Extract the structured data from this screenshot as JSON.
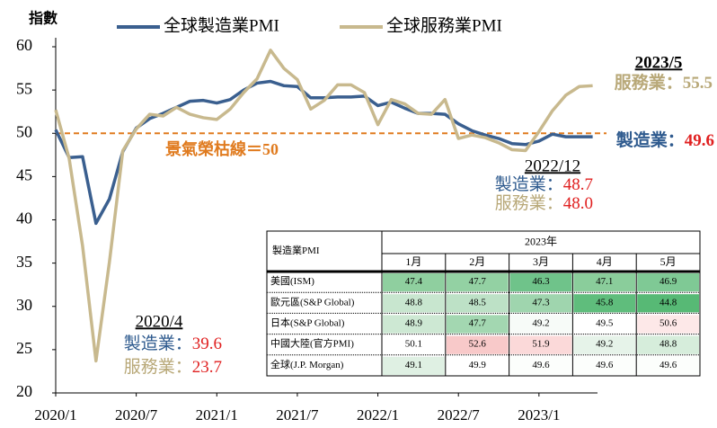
{
  "chart_data": {
    "type": "line",
    "y_label": "指數",
    "categories": [
      "2020/1",
      null,
      null,
      null,
      null,
      null,
      "2020/7",
      null,
      null,
      null,
      null,
      null,
      "2021/1",
      null,
      null,
      null,
      null,
      null,
      "2021/7",
      null,
      null,
      null,
      null,
      null,
      "2022/1",
      null,
      null,
      null,
      null,
      null,
      "2022/7",
      null,
      null,
      null,
      null,
      null,
      "2023/1",
      null,
      null,
      null,
      null
    ],
    "series": [
      {
        "name": "全球製造業PMI",
        "color": "#3a5f8f",
        "values": [
          50.4,
          47.2,
          47.3,
          39.6,
          42.4,
          47.9,
          50.6,
          51.7,
          52.3,
          53.0,
          53.7,
          53.8,
          53.5,
          53.9,
          55.0,
          55.8,
          56.0,
          55.5,
          55.4,
          54.1,
          54.1,
          54.2,
          54.2,
          54.3,
          53.2,
          53.6,
          52.9,
          52.3,
          52.3,
          52.2,
          51.1,
          50.3,
          49.8,
          49.4,
          48.8,
          48.7,
          49.1,
          49.9,
          49.6,
          49.6,
          49.6
        ]
      },
      {
        "name": "全球服務業PMI",
        "color": "#c8b98e",
        "values": [
          52.7,
          47.1,
          37.0,
          23.7,
          35.1,
          48.0,
          50.5,
          52.2,
          52.0,
          53.0,
          52.2,
          51.8,
          51.6,
          52.8,
          54.7,
          56.3,
          59.6,
          57.5,
          56.2,
          52.8,
          53.8,
          55.6,
          55.6,
          54.7,
          51.0,
          53.9,
          53.4,
          52.3,
          52.2,
          53.9,
          49.4,
          49.8,
          49.5,
          48.9,
          48.1,
          48.0,
          50.2,
          52.6,
          54.4,
          55.4,
          55.5
        ]
      }
    ],
    "ylim": [
      20,
      60
    ],
    "yticks": [
      20,
      25,
      30,
      35,
      40,
      45,
      50,
      55,
      60
    ],
    "reference_line": {
      "value": 50,
      "label": "景氣榮枯線＝50",
      "color": "#e07b1f"
    },
    "annotations": [
      {
        "text": "2023/5"
      },
      {
        "label": "服務業：",
        "value": "55.5",
        "series": 1,
        "value_color": "#b8a878"
      },
      {
        "label": "製造業：",
        "value": "49.6",
        "series": 0,
        "value_color": "#e02020"
      },
      {
        "text": "2022/12"
      },
      {
        "label": "製造業：",
        "value": "48.7",
        "series": 0,
        "value_color": "#e02020"
      },
      {
        "label": "服務業：",
        "value": "48.0",
        "series": 1,
        "value_color": "#e02020"
      },
      {
        "text": "2020/4"
      },
      {
        "label": "製造業：",
        "value": "39.6",
        "series": 0,
        "value_color": "#e02020"
      },
      {
        "label": "服務業：",
        "value": "23.7",
        "series": 1,
        "value_color": "#e02020"
      }
    ]
  },
  "table": {
    "corner": "製造業PMI",
    "year": "2023年",
    "columns": [
      "1月",
      "2月",
      "3月",
      "4月",
      "5月"
    ],
    "rows": [
      {
        "name": "美國(ISM)",
        "values": [
          47.4,
          47.7,
          46.3,
          47.1,
          46.9
        ],
        "colors": [
          "#8fcf9f",
          "#93d1a3",
          "#6fc38a",
          "#8acd9b",
          "#7fc995"
        ]
      },
      {
        "name": "歐元區(S&P Global)",
        "values": [
          48.8,
          48.5,
          47.3,
          45.8,
          44.8
        ],
        "colors": [
          "#c8e6cf",
          "#bde1c6",
          "#9fd5ae",
          "#5fbd7c",
          "#57b975"
        ]
      },
      {
        "name": "日本(S&P Global)",
        "values": [
          48.9,
          47.7,
          49.2,
          49.5,
          50.6
        ],
        "colors": [
          "#cde8d3",
          "#a3d7b1",
          "#f7fbf8",
          "#ffffff",
          "#fde8e8"
        ]
      },
      {
        "name": "中國大陸(官方PMI)",
        "values": [
          50.1,
          52.6,
          51.9,
          49.2,
          48.8
        ],
        "colors": [
          "#ffffff",
          "#f8c9c9",
          "#fbd9d9",
          "#e6f3e9",
          "#d6eddb"
        ]
      },
      {
        "name": "全球(J.P. Morgan)",
        "values": [
          49.1,
          49.9,
          49.6,
          49.6,
          49.6
        ],
        "colors": [
          "#dff0e3",
          "#ffffff",
          "#fcfefc",
          "#fcfefc",
          "#fcfefc"
        ]
      }
    ]
  }
}
